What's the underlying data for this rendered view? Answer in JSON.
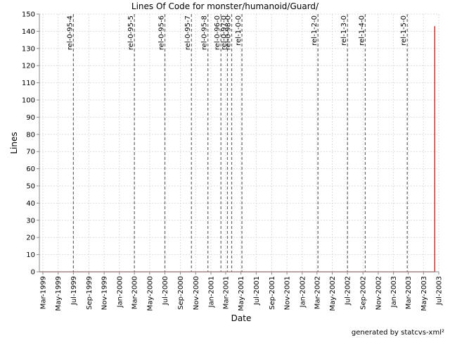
{
  "chart_data": {
    "type": "line",
    "title": "Lines Of Code for monster/humanoid/Guard/",
    "xlabel": "Date",
    "ylabel": "Lines",
    "ylim": [
      0,
      150
    ],
    "yticks": [
      0,
      10,
      20,
      30,
      40,
      50,
      60,
      70,
      80,
      90,
      100,
      110,
      120,
      130,
      140,
      150
    ],
    "xlim": [
      "1999-02-15",
      "2003-07-01"
    ],
    "xticks": [
      {
        "label": "Mar-1999",
        "date": "1999-03-01"
      },
      {
        "label": "May-1999",
        "date": "1999-05-01"
      },
      {
        "label": "Jul-1999",
        "date": "1999-07-01"
      },
      {
        "label": "Sep-1999",
        "date": "1999-09-01"
      },
      {
        "label": "Nov-1999",
        "date": "1999-11-01"
      },
      {
        "label": "Jan-2000",
        "date": "2000-01-01"
      },
      {
        "label": "Mar-2000",
        "date": "2000-03-01"
      },
      {
        "label": "May-2000",
        "date": "2000-05-01"
      },
      {
        "label": "Jul-2000",
        "date": "2000-07-01"
      },
      {
        "label": "Sep-2000",
        "date": "2000-09-01"
      },
      {
        "label": "Nov-2000",
        "date": "2000-11-01"
      },
      {
        "label": "Jan-2001",
        "date": "2001-01-01"
      },
      {
        "label": "Mar-2001",
        "date": "2001-03-01"
      },
      {
        "label": "May-2001",
        "date": "2001-05-01"
      },
      {
        "label": "Jul-2001",
        "date": "2001-07-01"
      },
      {
        "label": "Sep-2001",
        "date": "2001-09-01"
      },
      {
        "label": "Nov-2001",
        "date": "2001-11-01"
      },
      {
        "label": "Jan-2002",
        "date": "2002-01-01"
      },
      {
        "label": "Mar-2002",
        "date": "2002-03-01"
      },
      {
        "label": "May-2002",
        "date": "2002-05-01"
      },
      {
        "label": "Jul-2002",
        "date": "2002-07-01"
      },
      {
        "label": "Sep-2002",
        "date": "2002-09-01"
      },
      {
        "label": "Nov-2002",
        "date": "2002-11-01"
      },
      {
        "label": "Jan-2003",
        "date": "2003-01-01"
      },
      {
        "label": "Mar-2003",
        "date": "2003-03-01"
      },
      {
        "label": "May-2003",
        "date": "2003-05-01"
      },
      {
        "label": "Jul-2003",
        "date": "2003-07-01"
      }
    ],
    "grid": true,
    "series": [
      {
        "color": "#cc0000",
        "points": [
          {
            "x": "1999-02-15",
            "y": 0
          },
          {
            "x": "2003-06-15",
            "y": 0
          },
          {
            "x": "2003-06-15",
            "y": 143
          }
        ]
      }
    ],
    "markers": [
      {
        "label": "rel-0-95-4",
        "date": "1999-07-01"
      },
      {
        "label": "rel-0-95-5",
        "date": "2000-03-01"
      },
      {
        "label": "rel-0-95-6",
        "date": "2000-07-01"
      },
      {
        "label": "rel-0-95-7",
        "date": "2000-10-15"
      },
      {
        "label": "rel-0-95-8",
        "date": "2000-12-20"
      },
      {
        "label": "rel-0-96-0",
        "date": "2001-02-10"
      },
      {
        "label": "rel-0-97-0",
        "date": "2001-03-08"
      },
      {
        "label": "rel-0-98-0",
        "date": "2001-03-25"
      },
      {
        "label": "rel-1-0-0",
        "date": "2001-05-05"
      },
      {
        "label": "rel-1-2-0",
        "date": "2002-03-05"
      },
      {
        "label": "rel-1-3-0",
        "date": "2002-07-01"
      },
      {
        "label": "rel-1-4-0",
        "date": "2002-09-10"
      },
      {
        "label": "rel-1-5-0",
        "date": "2003-02-25"
      }
    ],
    "colors": {
      "series": "#cc0000",
      "grid": "#dddddd",
      "marker": "#666666",
      "axis": "#888888"
    },
    "credit": "generated by statcvs-xml²"
  }
}
